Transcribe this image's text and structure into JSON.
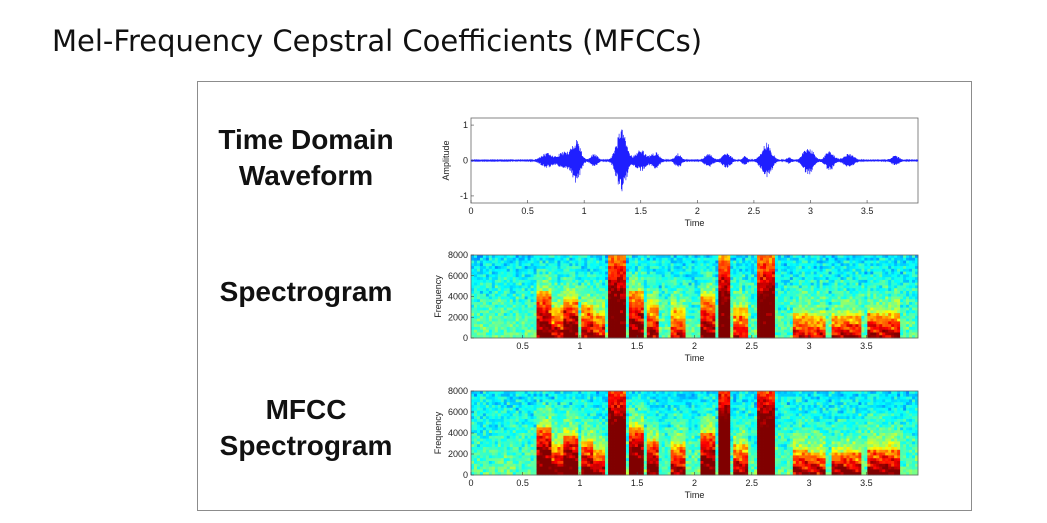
{
  "page": {
    "title": "Mel-Frequency Cepstral Coefficients (MFCCs)"
  },
  "panels": {
    "waveform": {
      "label_lines": [
        "Time Domain",
        "Waveform"
      ]
    },
    "spectrogram": {
      "label_lines": [
        "Spectrogram"
      ]
    },
    "mfcc": {
      "label_lines": [
        "MFCC",
        "Spectrogram"
      ]
    }
  },
  "colors": {
    "waveform": "#1f1fff",
    "zero_line": "#4a4a4a",
    "colormap": "jet"
  },
  "chart_data": [
    {
      "type": "line",
      "name": "waveform",
      "xlabel": "Time",
      "ylabel": "Amplitude",
      "xlim": [
        0,
        3.95
      ],
      "ylim": [
        -1.2,
        1.2
      ],
      "x_ticks": [
        "0",
        "0.5",
        "1",
        "1.5",
        "2",
        "2.5",
        "3",
        "3.5"
      ],
      "y_ticks": [
        "-1",
        "0",
        "1"
      ],
      "bursts": [
        {
          "t": 0.67,
          "amp": 0.2,
          "w": 0.07
        },
        {
          "t": 0.82,
          "amp": 0.25,
          "w": 0.06
        },
        {
          "t": 0.93,
          "amp": 0.62,
          "w": 0.05
        },
        {
          "t": 1.09,
          "amp": 0.18,
          "w": 0.04
        },
        {
          "t": 1.33,
          "amp": 0.88,
          "w": 0.06
        },
        {
          "t": 1.5,
          "amp": 0.3,
          "w": 0.06
        },
        {
          "t": 1.63,
          "amp": 0.22,
          "w": 0.05
        },
        {
          "t": 1.83,
          "amp": 0.2,
          "w": 0.04
        },
        {
          "t": 2.1,
          "amp": 0.18,
          "w": 0.05
        },
        {
          "t": 2.26,
          "amp": 0.2,
          "w": 0.05
        },
        {
          "t": 2.42,
          "amp": 0.12,
          "w": 0.03
        },
        {
          "t": 2.61,
          "amp": 0.5,
          "w": 0.06
        },
        {
          "t": 2.81,
          "amp": 0.08,
          "w": 0.03
        },
        {
          "t": 2.98,
          "amp": 0.4,
          "w": 0.06
        },
        {
          "t": 3.17,
          "amp": 0.28,
          "w": 0.05
        },
        {
          "t": 3.34,
          "amp": 0.18,
          "w": 0.06
        },
        {
          "t": 3.75,
          "amp": 0.12,
          "w": 0.05
        }
      ]
    },
    {
      "type": "heatmap",
      "name": "spectrogram",
      "xlabel": "Time",
      "ylabel": "Frequency",
      "xlim": [
        0.05,
        3.95
      ],
      "ylim": [
        0,
        8000
      ],
      "x_ticks": [
        "0.5",
        "1",
        "1.5",
        "2",
        "2.5",
        "3",
        "3.5"
      ],
      "y_ticks": [
        "0",
        "2000",
        "4000",
        "6000",
        "8000"
      ],
      "colormap": "jet"
    },
    {
      "type": "heatmap",
      "name": "mfcc_spectrogram",
      "xlabel": "Time",
      "ylabel": "Frequency",
      "xlim": [
        0.05,
        3.95
      ],
      "ylim": [
        0,
        8000
      ],
      "x_ticks": [
        "0",
        "0.5",
        "1",
        "1.5",
        "2",
        "2.5",
        "3",
        "3.5"
      ],
      "y_ticks": [
        "0",
        "2000",
        "4000",
        "6000",
        "8000"
      ],
      "colormap": "jet"
    }
  ],
  "energy_segments": [
    {
      "t0": 0.62,
      "t1": 0.74,
      "e": 0.75,
      "top": 0.55
    },
    {
      "t0": 0.74,
      "t1": 0.85,
      "e": 0.6,
      "top": 0.35
    },
    {
      "t0": 0.85,
      "t1": 0.98,
      "e": 0.78,
      "top": 0.45
    },
    {
      "t0": 1.02,
      "t1": 1.12,
      "e": 0.6,
      "top": 0.4
    },
    {
      "t0": 1.12,
      "t1": 1.22,
      "e": 0.55,
      "top": 0.3
    },
    {
      "t0": 1.25,
      "t1": 1.4,
      "e": 0.95,
      "top": 1.0
    },
    {
      "t0": 1.42,
      "t1": 1.55,
      "e": 0.75,
      "top": 0.55
    },
    {
      "t0": 1.58,
      "t1": 1.7,
      "e": 0.65,
      "top": 0.4
    },
    {
      "t0": 1.78,
      "t1": 1.92,
      "e": 0.55,
      "top": 0.35
    },
    {
      "t0": 2.05,
      "t1": 2.18,
      "e": 0.7,
      "top": 0.5
    },
    {
      "t0": 2.2,
      "t1": 2.32,
      "e": 0.95,
      "top": 1.0
    },
    {
      "t0": 2.35,
      "t1": 2.48,
      "e": 0.55,
      "top": 0.35
    },
    {
      "t0": 2.55,
      "t1": 2.7,
      "e": 0.95,
      "top": 1.0
    },
    {
      "t0": 2.85,
      "t1": 3.0,
      "e": 0.55,
      "top": 0.3
    },
    {
      "t0": 3.0,
      "t1": 3.15,
      "e": 0.55,
      "top": 0.25
    },
    {
      "t0": 3.2,
      "t1": 3.45,
      "e": 0.6,
      "top": 0.25
    },
    {
      "t0": 3.5,
      "t1": 3.8,
      "e": 0.62,
      "top": 0.3
    }
  ]
}
